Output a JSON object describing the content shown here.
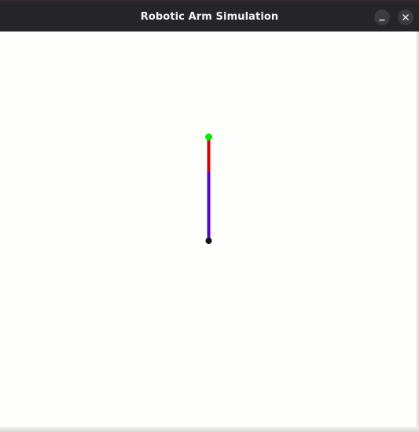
{
  "window": {
    "title": "Robotic Arm Simulation",
    "controls": [
      "minimize",
      "close"
    ]
  },
  "scene": {
    "background_color": "#fefefd",
    "base_joint_color": "#111111",
    "link1_color": "#5a00d8",
    "link2_color": "#e00000",
    "end_effector_color": "#00ee00"
  }
}
